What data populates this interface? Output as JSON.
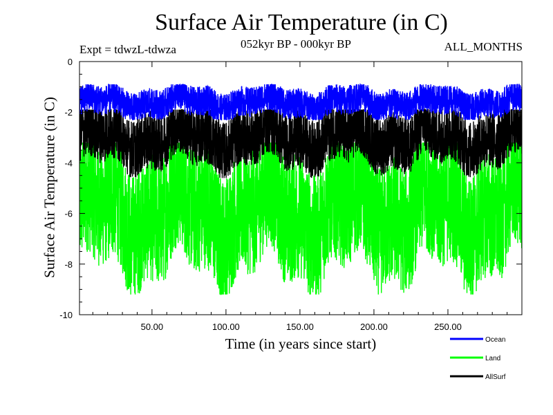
{
  "chart_data": {
    "type": "line",
    "title": "Surface Air Temperature (in C)",
    "subtitle": "052kyr BP - 000kyr BP",
    "expt": "Expt = tdwzL-tdwza",
    "months": "ALL_MONTHS",
    "xlabel": "Time (in years since start)",
    "ylabel": "Surface Air Temperature (in C)",
    "xlim": [
      1,
      300
    ],
    "ylim": [
      -10,
      0
    ],
    "xticks": [
      50,
      100,
      150,
      200,
      250
    ],
    "xtick_labels": [
      "50.00",
      "100.00",
      "150.00",
      "200.00",
      "250.00"
    ],
    "yticks": [
      0,
      -2,
      -4,
      -6,
      -8,
      -10
    ],
    "ytick_labels": [
      "0",
      "-2",
      "-4",
      "-6",
      "-8",
      "-10"
    ],
    "grid": false,
    "legend_position": "bottom-right",
    "series": [
      {
        "name": "Ocean",
        "color": "#0000ff",
        "mean": -1.6,
        "min": -2.3,
        "max": -0.9
      },
      {
        "name": "Land",
        "color": "#00ff00",
        "mean": -5.9,
        "min": -9.2,
        "max": -3.2
      },
      {
        "name": "AllSurf",
        "color": "#000000",
        "mean": -3.0,
        "min": -4.6,
        "max": -1.9
      }
    ],
    "data_note_original_printed": ""
  }
}
